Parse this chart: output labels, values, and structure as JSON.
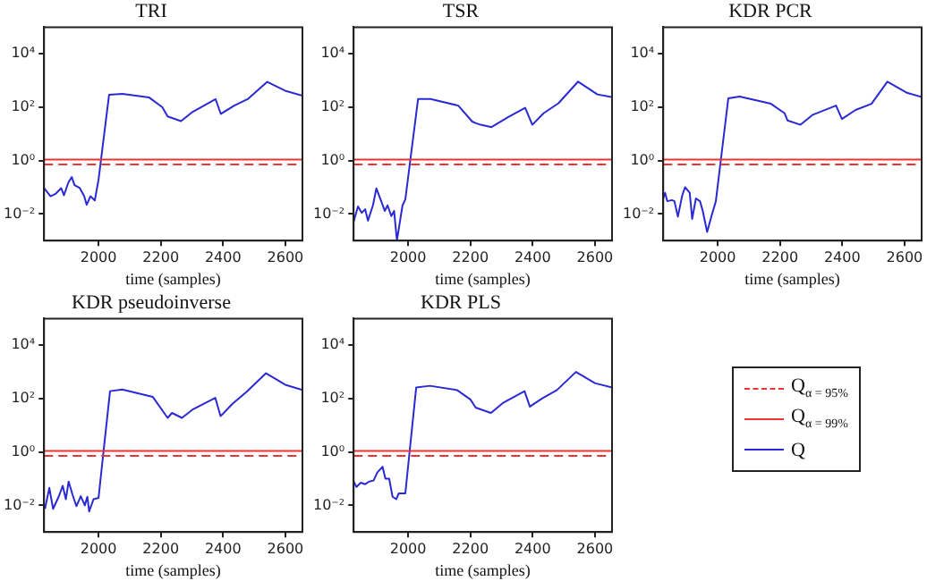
{
  "chart_data": [
    {
      "type": "line",
      "title": "TRI",
      "xlabel": "time (samples)",
      "log": "y",
      "xlim": [
        1825,
        2655
      ],
      "xticks": [
        2000,
        2200,
        2400,
        2600
      ],
      "ylim": [
        0.001,
        100000
      ],
      "yticks": [
        {
          "value": 0.01,
          "label": "10⁻²"
        },
        {
          "value": 1,
          "label": "10⁰"
        },
        {
          "value": 100,
          "label": "10²"
        },
        {
          "value": 10000,
          "label": "10⁴"
        }
      ],
      "grid": false,
      "legend": false,
      "series": [
        {
          "color": "#ee3333",
          "line_style": "dashed",
          "x": [
            1825,
            2655
          ],
          "values": [
            0.72,
            0.72
          ]
        },
        {
          "color": "#ee3333",
          "line_style": "solid",
          "x": [
            1825,
            2655
          ],
          "values": [
            1.1,
            1.1
          ]
        },
        {
          "color": "#2a2ad4",
          "line_style": "solid",
          "x": [
            1825,
            1846,
            1863,
            1880,
            1889,
            1903,
            1914,
            1923,
            1940,
            1954,
            1962,
            1974,
            1988,
            2000,
            2034,
            2077,
            2162,
            2205,
            2222,
            2265,
            2299,
            2376,
            2393,
            2436,
            2479,
            2542,
            2599,
            2655
          ],
          "values": [
            0.093,
            0.046,
            0.058,
            0.093,
            0.05,
            0.15,
            0.24,
            0.12,
            0.093,
            0.046,
            0.022,
            0.046,
            0.032,
            0.19,
            295,
            316,
            234,
            100,
            45,
            30,
            63,
            200,
            56,
            115,
            200,
            891,
            417,
            269
          ]
        }
      ]
    },
    {
      "type": "line",
      "title": "TSR",
      "xlabel": "time (samples)",
      "log": "y",
      "xlim": [
        1825,
        2655
      ],
      "xticks": [
        2000,
        2200,
        2400,
        2600
      ],
      "ylim": [
        0.001,
        100000
      ],
      "yticks": [
        {
          "value": 0.01,
          "label": "10⁻²"
        },
        {
          "value": 1,
          "label": "10⁰"
        },
        {
          "value": 100,
          "label": "10²"
        },
        {
          "value": 10000,
          "label": "10⁴"
        }
      ],
      "grid": false,
      "legend": false,
      "series": [
        {
          "color": "#ee3333",
          "line_style": "dashed",
          "x": [
            1825,
            2655
          ],
          "values": [
            0.72,
            0.72
          ]
        },
        {
          "color": "#ee3333",
          "line_style": "solid",
          "x": [
            1825,
            2655
          ],
          "values": [
            1.1,
            1.1
          ]
        },
        {
          "color": "#2a2ad4",
          "line_style": "solid",
          "x": [
            1825,
            1839,
            1851,
            1862,
            1871,
            1887,
            1898,
            1916,
            1925,
            1934,
            1946,
            1955,
            1964,
            1982,
            1991,
            2032,
            2072,
            2161,
            2206,
            2218,
            2233,
            2268,
            2322,
            2376,
            2399,
            2435,
            2483,
            2546,
            2608,
            2652
          ],
          "values": [
            0.0051,
            0.019,
            0.011,
            0.015,
            0.0056,
            0.021,
            0.091,
            0.025,
            0.013,
            0.021,
            0.0083,
            0.013,
            0.001,
            0.021,
            0.035,
            204,
            204,
            115,
            29,
            25,
            22,
            18,
            43,
            95,
            22,
            59,
            141,
            912,
            302,
            240
          ]
        }
      ]
    },
    {
      "type": "line",
      "title": "KDR PCR",
      "xlabel": "time (samples)",
      "log": "y",
      "xlim": [
        1825,
        2655
      ],
      "xticks": [
        2000,
        2200,
        2400,
        2600
      ],
      "ylim": [
        0.001,
        100000
      ],
      "yticks": [
        {
          "value": 0.01,
          "label": "10⁻²"
        },
        {
          "value": 1,
          "label": "10⁰"
        },
        {
          "value": 100,
          "label": "10²"
        },
        {
          "value": 10000,
          "label": "10⁴"
        }
      ],
      "grid": false,
      "legend": false,
      "series": [
        {
          "color": "#ee3333",
          "line_style": "dashed",
          "x": [
            1825,
            2655
          ],
          "values": [
            0.72,
            0.72
          ]
        },
        {
          "color": "#ee3333",
          "line_style": "solid",
          "x": [
            1825,
            2655
          ],
          "values": [
            1.1,
            1.1
          ]
        },
        {
          "color": "#2a2ad4",
          "line_style": "solid",
          "x": [
            1825,
            1831,
            1838,
            1853,
            1861,
            1872,
            1886,
            1895,
            1910,
            1918,
            1930,
            1943,
            1952,
            1966,
            1981,
            1994,
            2034,
            2070,
            2171,
            2215,
            2224,
            2266,
            2304,
            2380,
            2399,
            2443,
            2494,
            2545,
            2608,
            2655
          ],
          "values": [
            0.038,
            0.062,
            0.03,
            0.033,
            0.03,
            0.0079,
            0.049,
            0.1,
            0.062,
            0.0065,
            0.038,
            0.03,
            0.013,
            0.0021,
            0.0091,
            0.03,
            214,
            251,
            135,
            59,
            32,
            22,
            51,
            115,
            36,
            79,
            135,
            912,
            347,
            240
          ]
        }
      ]
    },
    {
      "type": "line",
      "title": "KDR pseudoinverse",
      "xlabel": "time (samples)",
      "log": "y",
      "xlim": [
        1825,
        2655
      ],
      "xticks": [
        2000,
        2200,
        2400,
        2600
      ],
      "ylim": [
        0.001,
        100000
      ],
      "yticks": [
        {
          "value": 0.01,
          "label": "10⁻²"
        },
        {
          "value": 1,
          "label": "10⁰"
        },
        {
          "value": 100,
          "label": "10²"
        },
        {
          "value": 10000,
          "label": "10⁴"
        }
      ],
      "grid": false,
      "legend": false,
      "series": [
        {
          "color": "#ee3333",
          "line_style": "dashed",
          "x": [
            1825,
            2655
          ],
          "values": [
            0.72,
            0.72
          ]
        },
        {
          "color": "#ee3333",
          "line_style": "solid",
          "x": [
            1825,
            2655
          ],
          "values": [
            1.1,
            1.1
          ]
        },
        {
          "color": "#2a2ad4",
          "line_style": "solid",
          "x": [
            1828,
            1842,
            1854,
            1872,
            1885,
            1895,
            1904,
            1917,
            1929,
            1943,
            1956,
            1964,
            1970,
            1984,
            2000,
            2037,
            2076,
            2174,
            2222,
            2236,
            2268,
            2304,
            2375,
            2392,
            2431,
            2476,
            2538,
            2600,
            2655
          ],
          "values": [
            0.0074,
            0.045,
            0.0074,
            0.021,
            0.054,
            0.017,
            0.078,
            0.024,
            0.0093,
            0.022,
            0.01,
            0.021,
            0.0059,
            0.017,
            0.019,
            190,
            219,
            117,
            19,
            29,
            19,
            40,
            107,
            22,
            65,
            182,
            891,
            331,
            209
          ]
        }
      ]
    },
    {
      "type": "line",
      "title": "KDR PLS",
      "xlabel": "time (samples)",
      "log": "y",
      "xlim": [
        1825,
        2655
      ],
      "xticks": [
        2000,
        2200,
        2400,
        2600
      ],
      "ylim": [
        0.001,
        100000
      ],
      "yticks": [
        {
          "value": 0.01,
          "label": "10⁻²"
        },
        {
          "value": 1,
          "label": "10⁰"
        },
        {
          "value": 100,
          "label": "10²"
        },
        {
          "value": 10000,
          "label": "10⁴"
        }
      ],
      "grid": false,
      "legend": "right",
      "series": [
        {
          "name": "Q$_{α = 95%}$",
          "color": "#ee3333",
          "line_style": "dashed",
          "x": [
            1825,
            2655
          ],
          "values": [
            0.72,
            0.72
          ]
        },
        {
          "name": "Q$_{α = 99%}$",
          "color": "#ee3333",
          "line_style": "solid",
          "x": [
            1825,
            2655
          ],
          "values": [
            1.1,
            1.1
          ]
        },
        {
          "name": "Q",
          "color": "#2a2ad4",
          "line_style": "solid",
          "x": [
            1825,
            1834,
            1848,
            1862,
            1875,
            1889,
            1901,
            1918,
            1927,
            1939,
            1950,
            1962,
            1970,
            1991,
            2026,
            2070,
            2157,
            2200,
            2217,
            2266,
            2304,
            2374,
            2391,
            2431,
            2478,
            2539,
            2600,
            2655
          ],
          "values": [
            0.078,
            0.049,
            0.071,
            0.062,
            0.078,
            0.085,
            0.17,
            0.28,
            0.1,
            0.1,
            0.021,
            0.017,
            0.028,
            0.028,
            263,
            302,
            209,
            93,
            46,
            29,
            68,
            190,
            50,
            102,
            209,
            1000,
            380,
            263
          ]
        }
      ]
    }
  ]
}
